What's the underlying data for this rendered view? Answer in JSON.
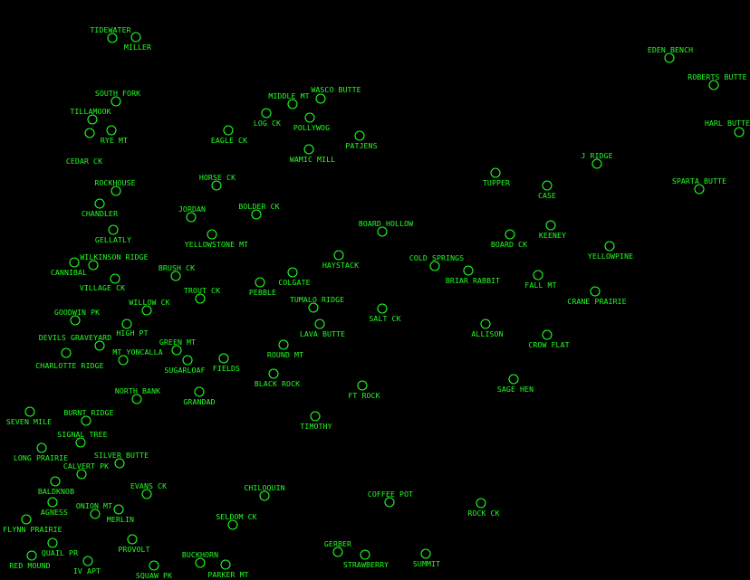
{
  "colors": {
    "background": "#000000",
    "marker": "#22ff22",
    "label": "#22ff22"
  },
  "marker_icon": "circle-icon",
  "stations": [
    "TIDEWATER",
    "MILLER",
    "SOUTH FORK",
    "TILLAMOOK",
    "RYE MT",
    "CEDAR CK",
    "EAGLE CK",
    "ROCKHOUSE",
    "CHANDLER",
    "HORSE CK",
    "JORDAN",
    "BOLDER CK",
    "YELLOWSTONE MT",
    "GELLATLY",
    "WILKINSON RIDGE",
    "CANNIBAL",
    "VILLAGE CK",
    "BRUSH CK",
    "TROUT CK",
    "PEBBLE",
    "COLGATE",
    "HAYSTACK",
    "TUMALO RIDGE",
    "LAVA BUTTE",
    "ROUND MT",
    "BLACK ROCK",
    "FT ROCK",
    "TIMOTHY",
    "SALT CK",
    "BOARD HOLLOW",
    "MIDDLE MT",
    "WASCO BUTTE",
    "LOG CK",
    "POLLYWOG",
    "PATJENS",
    "WAMIC MILL",
    "WILLOW CK",
    "GOODWIN PK",
    "HIGH PT",
    "DEVILS GRAVEYARD",
    "CHARLOTTE RIDGE",
    "MT YONCALLA",
    "GREEN MT",
    "SUGARLOAF",
    "FIELDS",
    "NORTH BANK",
    "GRANDAD",
    "SEVEN MILE",
    "BURNT RIDGE",
    "SIGNAL TREE",
    "LONG PRAIRIE",
    "SILVER BUTTE",
    "CALVERT PK",
    "BALDKNOB",
    "EVANS CK",
    "AGNESS",
    "ONION MT",
    "MERLIN",
    "FLYNN PRAIRIE",
    "QUAIL PR",
    "RED MOUND",
    "IV APT",
    "PROVOLT",
    "SQUAW PK",
    "BUCKHORN",
    "PARKER MT",
    "SELDOM CK",
    "CHILOQUIN",
    "COFFEE POT",
    "GERBER",
    "STRAWBERRY",
    "SUMMIT",
    "ROCK CK",
    "SAGE HEN",
    "ALLISON",
    "CROW FLAT",
    "COLD SPRINGS",
    "BRIAR RABBIT",
    "FALL MT",
    "CRANE PRAIRIE",
    "YELLOWPINE",
    "BOARD CK",
    "KEENEY",
    "TUPPER",
    "CASE",
    "J RIDGE",
    "SPARTA BUTTE",
    "EDEN BENCH",
    "ROBERTS BUTTE",
    "HARL BUTTE"
  ]
}
